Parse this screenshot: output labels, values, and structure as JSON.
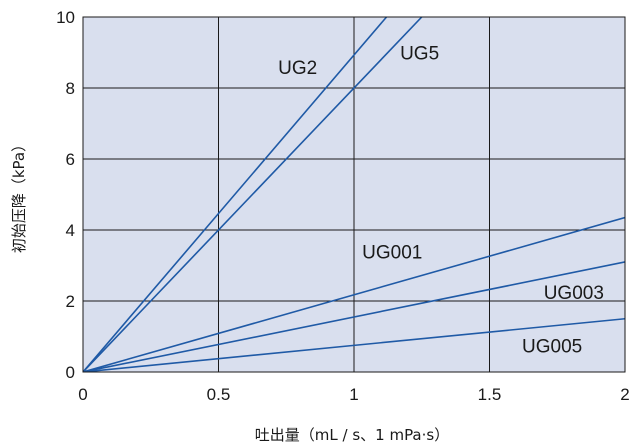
{
  "chart_data": {
    "type": "line",
    "title": "",
    "xlabel": "吐出量（mL / s、1 mPa·s）",
    "ylabel": "初始压降（kPa）",
    "xlim": [
      0,
      2
    ],
    "ylim": [
      0,
      10
    ],
    "xticks": [
      0,
      0.5,
      1,
      1.5,
      2
    ],
    "xtick_labels": [
      "0",
      "0.5",
      "1",
      "1.5",
      "2"
    ],
    "yticks": [
      0,
      2,
      4,
      6,
      8,
      10
    ],
    "ytick_labels": [
      "0",
      "2",
      "4",
      "6",
      "8",
      "10"
    ],
    "grid": true,
    "colors": {
      "plot_bg": "#d9dfee",
      "line": "#1f5aa6",
      "grid": "#1a1a1a"
    },
    "series": [
      {
        "name": "UG2",
        "x": [
          0,
          1.12
        ],
        "y": [
          0,
          10
        ]
      },
      {
        "name": "UG5",
        "x": [
          0,
          1.25
        ],
        "y": [
          0,
          10
        ]
      },
      {
        "name": "UG001",
        "x": [
          0,
          2
        ],
        "y": [
          0,
          4.35
        ]
      },
      {
        "name": "UG003",
        "x": [
          0,
          2
        ],
        "y": [
          0,
          3.1
        ]
      },
      {
        "name": "UG005",
        "x": [
          0,
          2
        ],
        "y": [
          0,
          1.5
        ]
      }
    ],
    "series_labels": [
      {
        "text": "UG2",
        "x": 0.72,
        "y": 8.4
      },
      {
        "text": "UG5",
        "x": 1.17,
        "y": 8.8
      },
      {
        "text": "UG001",
        "x": 1.03,
        "y": 3.2
      },
      {
        "text": "UG003",
        "x": 1.7,
        "y": 2.05
      },
      {
        "text": "UG005",
        "x": 1.62,
        "y": 0.55
      }
    ]
  }
}
